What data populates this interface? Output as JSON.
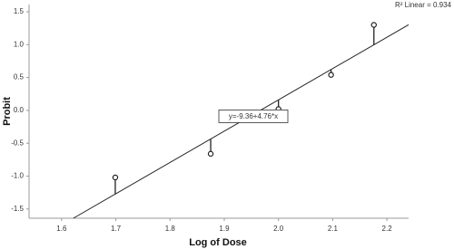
{
  "chart_data": {
    "type": "scatter",
    "x_label": "Log of Dose",
    "y_label": "Probit",
    "x": [
      1.699,
      1.875,
      2.0,
      2.097,
      2.176
    ],
    "values": [
      -1.02,
      -0.66,
      0.02,
      0.54,
      1.3
    ],
    "fit": {
      "intercept": -9.36,
      "slope": 4.76,
      "label": "y=-9.36+4.76*x",
      "r2_label": "R² Linear = 0.934"
    },
    "xlim": [
      1.54,
      2.24
    ],
    "ylim": [
      -1.64,
      1.61
    ],
    "xticks": [
      1.6,
      1.7,
      1.8,
      1.9,
      {
        "value": 2,
        "label": "2.0"
      },
      2.1,
      2.2
    ],
    "yticks": [
      -1.5,
      {
        "value": -1,
        "label": "-1.0"
      },
      -0.5,
      {
        "value": 0,
        "label": "0.0"
      },
      0.5,
      {
        "value": 1,
        "label": "1.0"
      },
      1.5
    ],
    "color": "#222222"
  }
}
